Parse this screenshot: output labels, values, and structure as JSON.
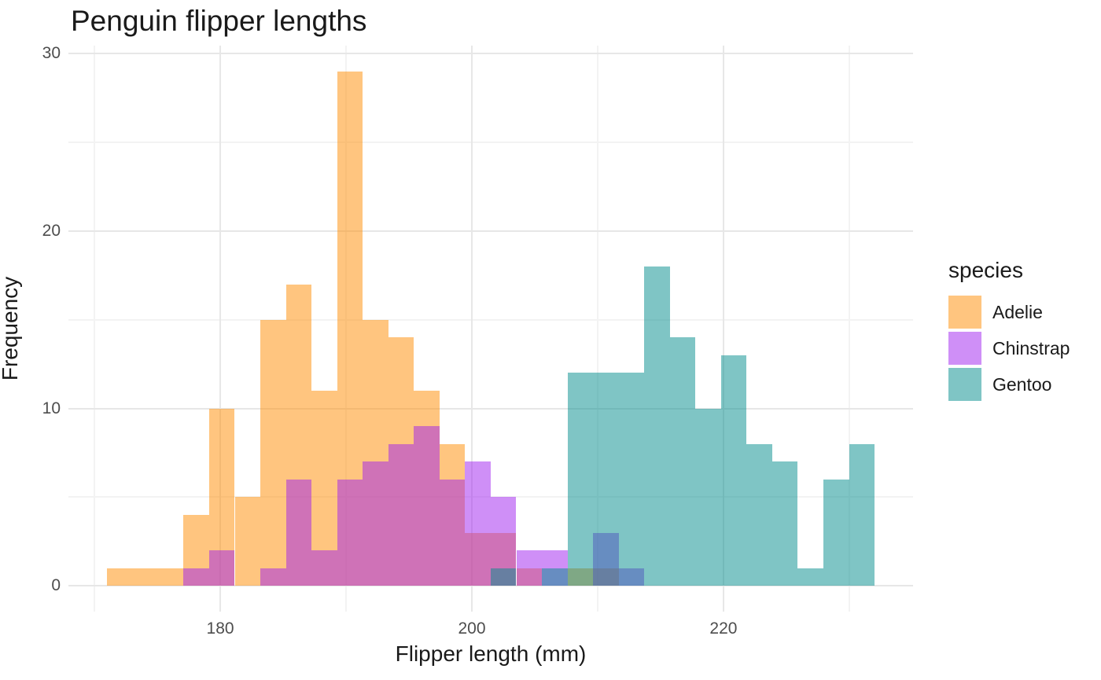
{
  "chart_data": {
    "type": "bar",
    "subtype": "overlaid-histogram",
    "title": "Penguin flipper lengths",
    "xlabel": "Flipper length (mm)",
    "ylabel": "Frequency",
    "legend_title": "species",
    "legend_position": "right",
    "grid": "on",
    "bins": {
      "start_mm": 170.98,
      "width_mm": 2.0345,
      "count": 30
    },
    "xlim": [
      167.93,
      235.07
    ],
    "ylim": [
      -1.45,
      30.45
    ],
    "x_major_ticks": [
      180,
      200,
      220
    ],
    "x_minor_ticks": [
      170,
      190,
      210,
      230
    ],
    "y_major_ticks": [
      0,
      10,
      20,
      30
    ],
    "y_minor_ticks": [
      5,
      15,
      25
    ],
    "series": [
      {
        "name": "Adelie",
        "color": "rgba(255,140,0,0.5)",
        "counts": [
          1,
          1,
          1,
          4,
          10,
          5,
          15,
          17,
          11,
          29,
          15,
          14,
          11,
          8,
          3,
          3,
          1,
          0,
          1,
          1,
          0,
          0,
          0,
          0,
          0,
          0,
          0,
          0,
          0,
          0
        ]
      },
      {
        "name": "Chinstrap",
        "color": "rgba(160,32,240,0.5)",
        "counts": [
          0,
          0,
          0,
          1,
          2,
          0,
          1,
          6,
          2,
          6,
          7,
          8,
          9,
          6,
          7,
          5,
          2,
          2,
          0,
          3,
          1,
          0,
          0,
          0,
          0,
          0,
          0,
          0,
          0,
          0
        ]
      },
      {
        "name": "Gentoo",
        "color": "rgba(0,139,139,0.5)",
        "counts": [
          0,
          0,
          0,
          0,
          0,
          0,
          0,
          0,
          0,
          0,
          0,
          0,
          0,
          0,
          0,
          1,
          0,
          1,
          12,
          12,
          12,
          18,
          14,
          10,
          13,
          8,
          7,
          1,
          6,
          8
        ]
      }
    ],
    "colors": {
      "major_grid": "#e7e7e7",
      "minor_grid": "#f3f3f3",
      "tick_text": "#4d4d4d",
      "title_text": "#1a1a1a"
    }
  }
}
